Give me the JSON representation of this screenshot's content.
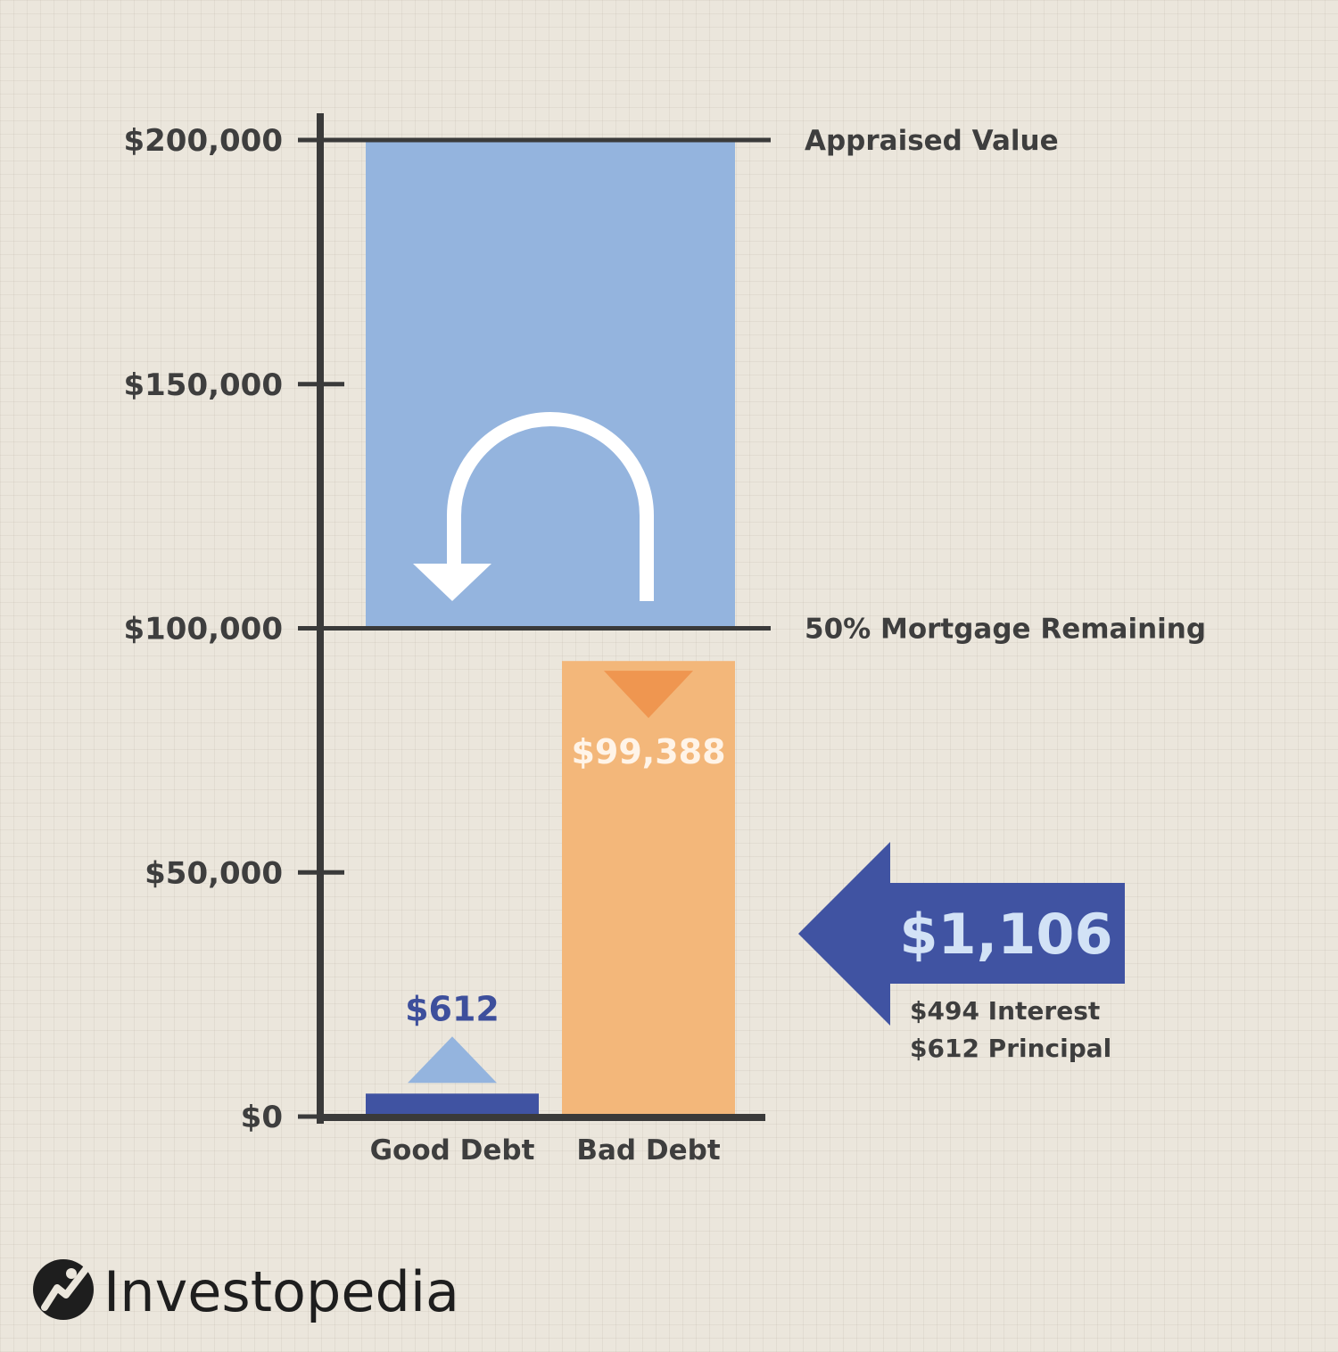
{
  "chart_data": {
    "type": "bar",
    "ylim": [
      0,
      200000
    ],
    "y_ticks": [
      {
        "value": 200000,
        "label": "$200,000"
      },
      {
        "value": 150000,
        "label": "$150,000"
      },
      {
        "value": 100000,
        "label": "$100,000"
      },
      {
        "value": 50000,
        "label": "$50,000"
      },
      {
        "value": 0,
        "label": "$0"
      }
    ],
    "categories": [
      "Good Debt",
      "Bad Debt"
    ],
    "series": [
      {
        "values": [
          4700,
          93300
        ]
      }
    ],
    "equity_band": {
      "from": 100000,
      "to": 200000,
      "color": "#94b4de"
    },
    "reference_lines": [
      {
        "value": 200000,
        "label": "Appraised Value"
      },
      {
        "value": 100000,
        "label": "50% Mortgage Remaining"
      }
    ],
    "data_labels": [
      {
        "category": "Good Debt",
        "text": "$612",
        "direction": "up"
      },
      {
        "category": "Bad Debt",
        "text": "$99,388",
        "direction": "down"
      }
    ],
    "callout": {
      "amount": "$1,106",
      "lines": [
        "$494 Interest",
        "$612 Principal"
      ],
      "value": 40000
    },
    "grid": false
  },
  "colors": {
    "axis": "#3a3a3a",
    "good_bar": "#4053a2",
    "good_marker": "#94b4de",
    "bad_bar": "#f3b77a",
    "bad_marker": "#ef9650",
    "bad_label": "#fff4e8",
    "good_label": "#3d4f9c",
    "callout_arrow": "#4053a2",
    "callout_text": "#d2e2f6",
    "return_arrow": "#ffffff"
  },
  "icons": {
    "return_arrow": "curved-return-arrow-icon",
    "callout_arrow": "left-arrow-icon",
    "logo": "investopedia-logo-icon"
  },
  "brand": {
    "name": "Investopedia"
  }
}
